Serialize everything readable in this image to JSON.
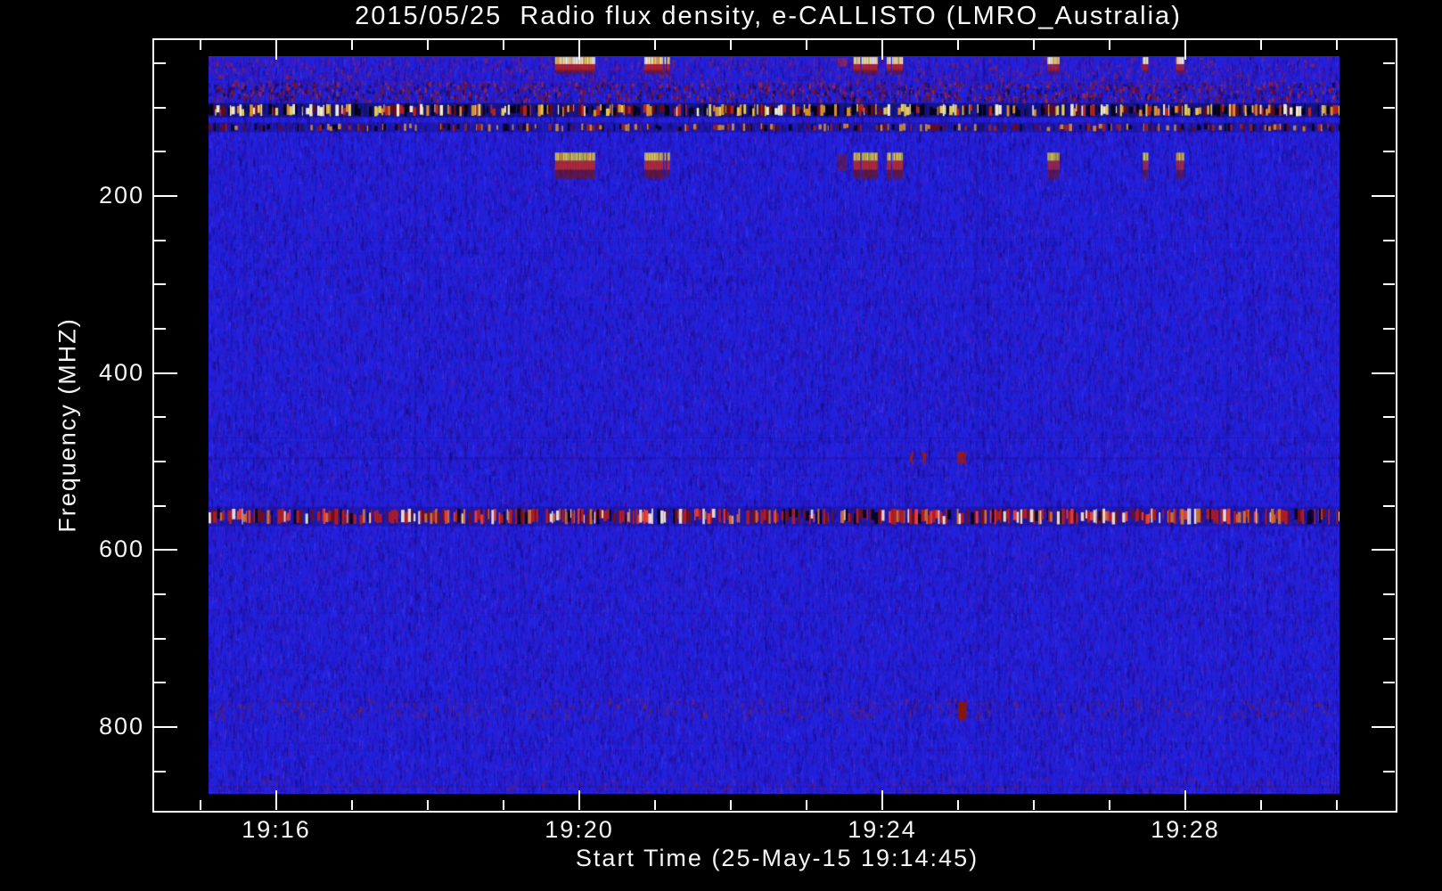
{
  "title": "2015/05/25  Radio flux density, e-CALLISTO (LMRO_Australia)",
  "x_axis": {
    "label": "Start Time (25-May-15 19:14:45)",
    "major_ticks": [
      {
        "label": "19:16",
        "minute": 16
      },
      {
        "label": "19:20",
        "minute": 20
      },
      {
        "label": "19:24",
        "minute": 24
      },
      {
        "label": "19:28",
        "minute": 28
      }
    ],
    "minor_tick_every_minutes": 1,
    "minor_tick_range_minutes": [
      15,
      30
    ]
  },
  "y_axis": {
    "label": "Frequency (MHZ)",
    "major_ticks": [
      {
        "label": "200",
        "mhz": 200
      },
      {
        "label": "400",
        "mhz": 400
      },
      {
        "label": "600",
        "mhz": 600
      },
      {
        "label": "800",
        "mhz": 800
      }
    ],
    "minor_tick_every_mhz": 50,
    "minor_tick_range_mhz": [
      50,
      850
    ]
  },
  "chart_data": {
    "type": "heatmap",
    "subtype": "radio-spectrogram-dynamic-spectrum",
    "title": "2015/05/25  Radio flux density, e-CALLISTO (LMRO_Australia)",
    "xlabel": "Start Time (25-May-15 19:14:45)",
    "ylabel": "Frequency (MHZ)",
    "x_start_time": "19:14:45",
    "x_end_time": "19:30:45",
    "x_major_tick_labels": [
      "19:16",
      "19:20",
      "19:24",
      "19:28"
    ],
    "y_major_tick_labels": [
      "200",
      "400",
      "600",
      "800"
    ],
    "y_axis_direction": "low-frequency-at-top",
    "image_freq_range_mhz": [
      42,
      875
    ],
    "image_time_range": [
      "19:15:06",
      "19:30:02"
    ],
    "grid": false,
    "legend": false,
    "background": {
      "description": "quiet solar radio background: bright blue with purple/indigo vertical noise striations and faint red mottling",
      "base_color": "#2121dd"
    },
    "colors": {
      "base_blue": "#2121dd",
      "noise_purple": "#3c0fa6",
      "burst_white": "#fff8e0",
      "burst_yellow": "#f0d050",
      "burst_olive": "#c8c24a",
      "burst_orange": "#e09a32",
      "burst_red": "#c83219",
      "burst_dark_red": "#7a150e",
      "rfi_black": "#000000"
    },
    "rfi_bands": [
      {
        "name": "speckle-band",
        "freq_mhz": [
          71,
          91
        ],
        "appearance": "sparse dark-red/red speckles on blue"
      },
      {
        "name": "dense-barcode-band",
        "freq_mhz": [
          96,
          110
        ],
        "appearance": "dense barcode of black/red/orange/yellow/white dashes (strong persistent RFI)"
      },
      {
        "name": "thin-barcode-band",
        "freq_mhz": [
          117,
          128
        ],
        "appearance": "thin sparse barcode of black/dark-red/orange dashes"
      },
      {
        "name": "uhf-barcode-band",
        "freq_mhz": [
          553,
          571
        ],
        "appearance": "persistent barcode of red/dark-red/black dashes"
      },
      {
        "name": "faint-high-band",
        "freq_mhz": [
          767,
          788
        ],
        "appearance": "very faint red speckles across full duration",
        "blob": {
          "time": "19:24:58-19:25:05",
          "t0_min": 25.0,
          "t1_min": 25.09,
          "freq_mhz": [
            771,
            788
          ]
        }
      }
    ],
    "burst_freq_patches_mhz": [
      [
        43,
        59
      ],
      [
        151,
        178
      ]
    ],
    "bursts": [
      {
        "time": "19:19:41-19:20:12",
        "t0_min": 19.68,
        "t1_min": 20.2,
        "strength": "strong"
      },
      {
        "time": "19:20:52-19:21:11",
        "t0_min": 20.86,
        "t1_min": 21.18,
        "strength": "strong"
      },
      {
        "time": "19:23:25-19:23:32",
        "t0_min": 23.41,
        "t1_min": 23.53,
        "strength": "weak"
      },
      {
        "time": "19:23:37-19:23:55",
        "t0_min": 23.62,
        "t1_min": 23.92,
        "strength": "strong"
      },
      {
        "time": "19:24:04-19:24:16",
        "t0_min": 24.06,
        "t1_min": 24.27,
        "strength": "strong"
      },
      {
        "time": "19:26:11-19:26:20",
        "t0_min": 26.18,
        "t1_min": 26.33,
        "strength": "medium"
      },
      {
        "time": "19:27:26-19:27:31",
        "t0_min": 27.44,
        "t1_min": 27.51,
        "strength": "medium"
      },
      {
        "time": "19:27:52-19:27:59",
        "t0_min": 27.86,
        "t1_min": 27.98,
        "strength": "medium"
      }
    ],
    "spots": [
      {
        "time": "19:24:23",
        "t_min": 24.38,
        "freq_mhz": 494,
        "appearance": "small red fleck"
      },
      {
        "time": "19:24:32",
        "t_min": 24.54,
        "freq_mhz": 494,
        "appearance": "small red fleck"
      },
      {
        "time": "19:25:00-19:25:05",
        "t_min": 25.04,
        "freq_mhz": 494,
        "appearance": "dark red blob"
      }
    ]
  }
}
